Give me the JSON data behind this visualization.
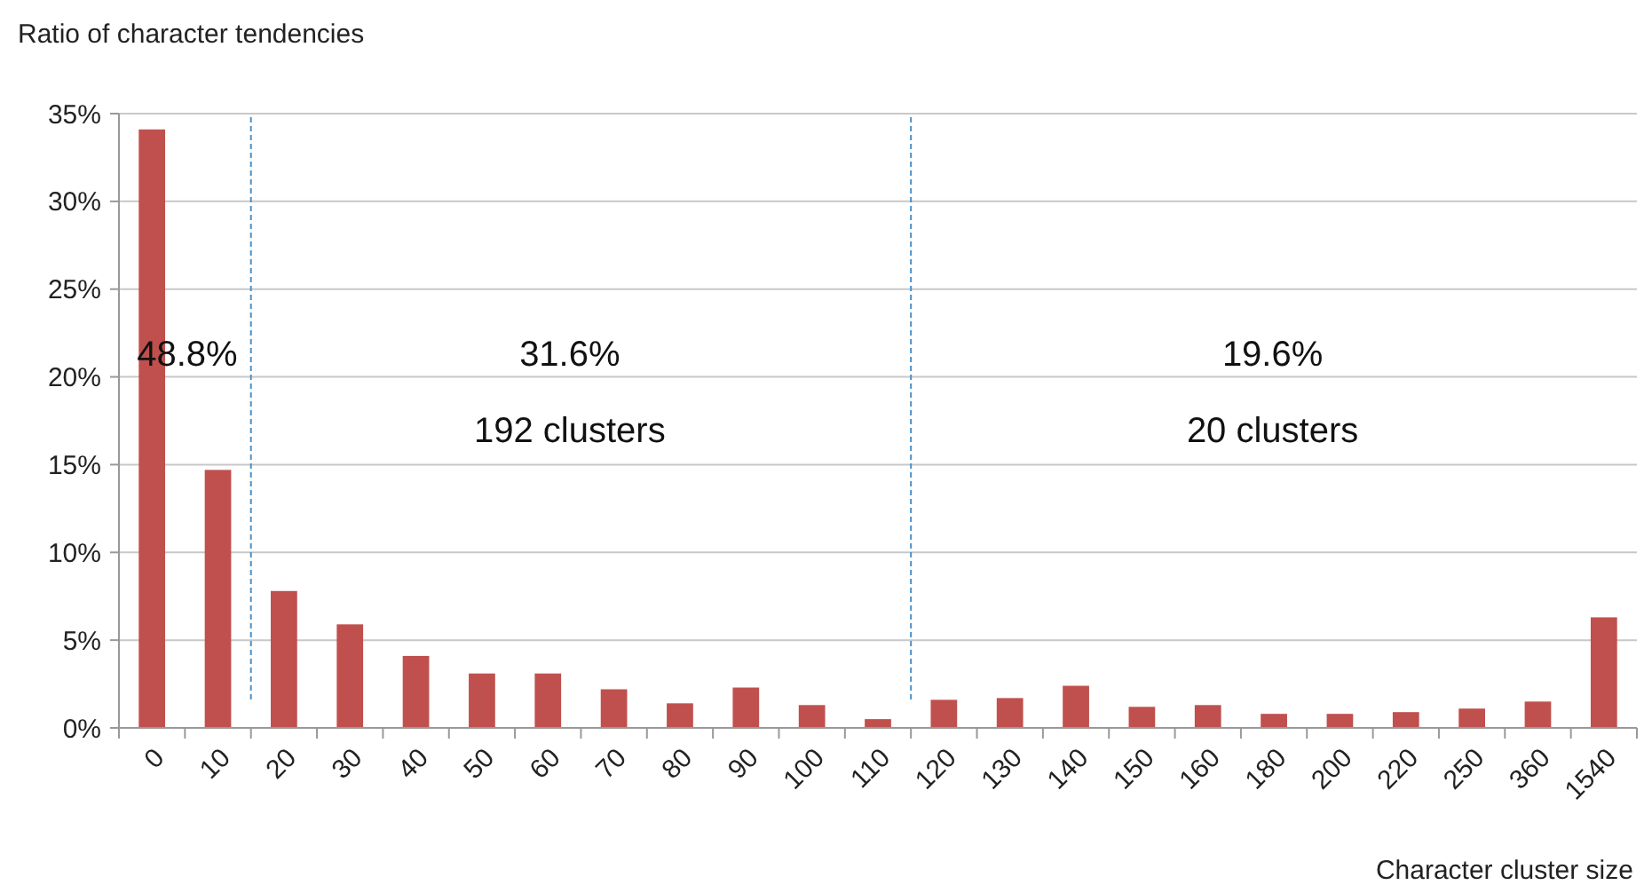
{
  "chart_data": {
    "type": "bar",
    "ylabel": "Ratio of character tendencies",
    "xlabel": "Character cluster size",
    "categories": [
      "0",
      "10",
      "20",
      "30",
      "40",
      "50",
      "60",
      "70",
      "80",
      "90",
      "100",
      "110",
      "120",
      "130",
      "140",
      "150",
      "160",
      "180",
      "200",
      "220",
      "250",
      "360",
      "1540"
    ],
    "values": [
      34.1,
      14.7,
      7.8,
      5.9,
      4.1,
      3.1,
      3.1,
      2.2,
      1.4,
      2.3,
      1.3,
      0.5,
      1.6,
      1.7,
      2.4,
      1.2,
      1.3,
      0.8,
      0.8,
      0.9,
      1.1,
      1.5,
      6.3
    ],
    "color": "#c0504d",
    "ylim": [
      0,
      35
    ],
    "yticks": [
      {
        "value": 0,
        "label": "0%"
      },
      {
        "value": 5,
        "label": "5%"
      },
      {
        "value": 10,
        "label": "10%"
      },
      {
        "value": 15,
        "label": "15%"
      },
      {
        "value": 20,
        "label": "20%"
      },
      {
        "value": 25,
        "label": "25%"
      },
      {
        "value": 30,
        "label": "30%"
      },
      {
        "value": 35,
        "label": "35%"
      }
    ],
    "grid": "y",
    "annotations": [
      "48.8%",
      "31.6%",
      "192 clusters",
      "19.6%",
      "20 clusters"
    ]
  }
}
